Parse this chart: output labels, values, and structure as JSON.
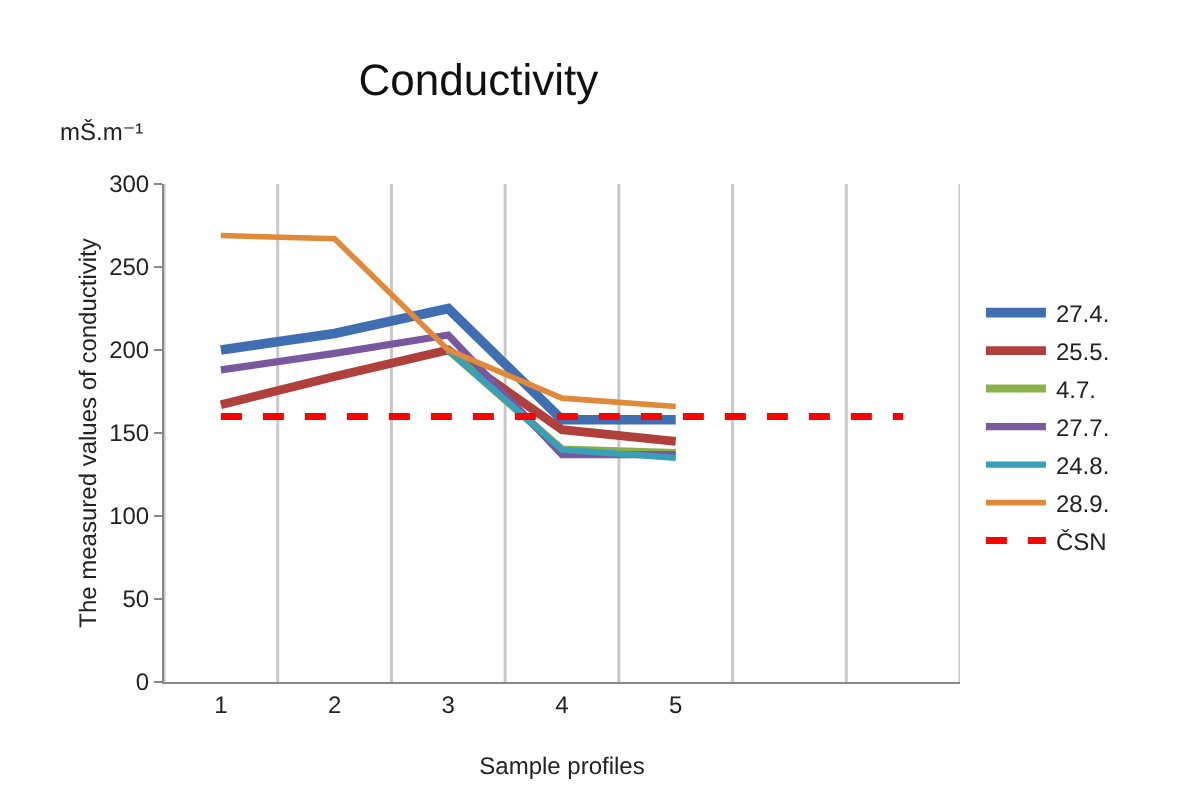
{
  "chart_data": {
    "type": "line",
    "title": "Conductivity",
    "xlabel": "Sample profiles",
    "ylabel": "The measured values of conductivity",
    "annotations": [
      "mŠ.m⁻¹"
    ],
    "categories": [
      "1",
      "2",
      "3",
      "4",
      "5",
      null,
      null
    ],
    "series": [
      {
        "name": "27.4.",
        "color": "#3f6fb0",
        "values": [
          200,
          210,
          225,
          158,
          158,
          null,
          null
        ]
      },
      {
        "name": "25.5.",
        "color": "#b0403c",
        "values": [
          167,
          184,
          200,
          152,
          145,
          null,
          null
        ]
      },
      {
        "name": "4.7.",
        "color": "#8bb04a",
        "values": [
          null,
          null,
          200,
          140,
          138,
          null,
          null
        ]
      },
      {
        "name": "27.7.",
        "color": "#7a58a0",
        "values": [
          188,
          198,
          209,
          137,
          137,
          null,
          null
        ]
      },
      {
        "name": "24.8.",
        "color": "#3aa0b8",
        "values": [
          null,
          null,
          200,
          140,
          135,
          null,
          null
        ]
      },
      {
        "name": "28.9.",
        "color": "#e0893a",
        "values": [
          269,
          267,
          200,
          171,
          166,
          null,
          null
        ]
      },
      {
        "name": "ČSN",
        "color": "#ff0000",
        "line_style": "dashed",
        "values": [
          160,
          160,
          160,
          160,
          160,
          160,
          160
        ]
      }
    ],
    "ylim": [
      0,
      300
    ],
    "yticks": [
      0,
      50,
      100,
      150,
      200,
      250,
      300
    ],
    "grid": "x",
    "legend": "right",
    "marker": "none"
  }
}
